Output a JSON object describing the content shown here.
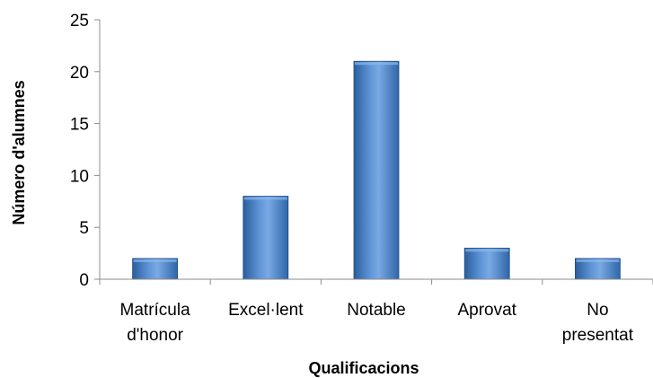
{
  "chart_data": {
    "type": "bar",
    "categories": [
      [
        "Matrícula",
        "d'honor"
      ],
      [
        "Excel·lent"
      ],
      [
        "Notable"
      ],
      [
        "Aprovat"
      ],
      [
        "No",
        "presentat"
      ]
    ],
    "values": [
      2,
      8,
      21,
      3,
      2
    ],
    "xlabel": "Qualificacions",
    "ylabel": "Número d'alumnes",
    "ylim": [
      0,
      25
    ],
    "yticks": [
      "0",
      "5",
      "10",
      "15",
      "20",
      "25"
    ],
    "grid": false,
    "legend": "none",
    "colors": {
      "bar_dark": "#2a5e9c",
      "bar_mid": "#5d93d6",
      "bar_light": "#8db8ec",
      "bar_stroke": "#1f4e86",
      "axis": "#8c8c8c"
    }
  }
}
